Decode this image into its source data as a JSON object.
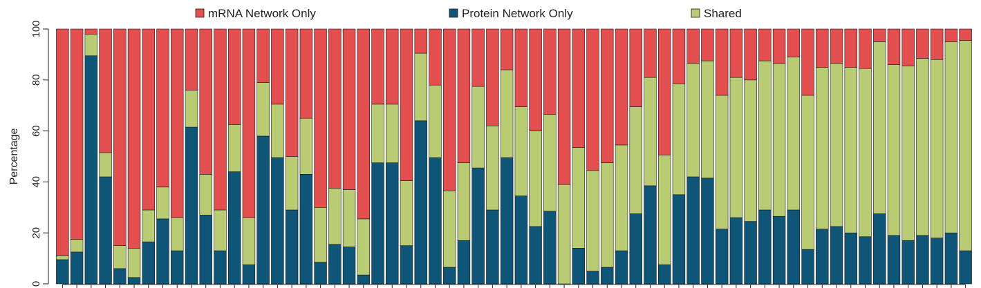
{
  "chart_data": {
    "type": "bar",
    "stacked": true,
    "title": "",
    "xlabel": "",
    "ylabel": "Percentage",
    "ylim": [
      0,
      100
    ],
    "yticks": [
      0,
      20,
      40,
      60,
      80,
      100
    ],
    "legend_position": "top",
    "grid": false,
    "colors": {
      "mRNA Network Only": "#e34f4f",
      "Protein Network Only": "#0f5577",
      "Shared": "#b9cc73"
    },
    "series": [
      {
        "name": "Protein Network Only",
        "values": [
          9.5,
          12.5,
          89.5,
          42,
          6,
          2.5,
          16.5,
          25.5,
          13,
          61.5,
          27,
          13,
          44,
          7.5,
          58,
          49.5,
          29,
          43,
          8.5,
          15.5,
          14.5,
          3.5,
          47.5,
          47.5,
          15,
          64,
          49.5,
          6.5,
          17,
          45.5,
          29,
          49.5,
          34.5,
          22.5,
          28.5,
          0,
          14,
          5,
          6.5,
          13,
          27.5,
          38.5,
          7.5,
          35,
          42,
          41.5,
          21.5,
          26,
          24.5,
          29,
          26.5,
          29,
          13.5,
          21.5,
          22.5,
          20,
          18.5,
          27.5,
          19,
          17,
          19,
          18,
          20,
          13
        ]
      },
      {
        "name": "Shared",
        "values": [
          1.5,
          5,
          8.5,
          9.5,
          9,
          11.5,
          12.5,
          12.5,
          13,
          14.5,
          16,
          16,
          18.5,
          18.5,
          21,
          21,
          21,
          22,
          21.5,
          22,
          22.5,
          22,
          23,
          23,
          25.5,
          26.5,
          28.5,
          30,
          30.5,
          32,
          33,
          34.5,
          35,
          37.5,
          38,
          39,
          39.5,
          39.5,
          41,
          41.5,
          42,
          42.5,
          43,
          43.5,
          44.5,
          46,
          52.5,
          55,
          55.5,
          58.5,
          60,
          60,
          60.5,
          63.5,
          64,
          65,
          66,
          67.5,
          67,
          68.5,
          69.5,
          70,
          75,
          82.5
        ]
      },
      {
        "name": "mRNA Network Only",
        "values": [
          89,
          82.5,
          2,
          48.5,
          85,
          86,
          71,
          62,
          74,
          24,
          57,
          71,
          37.5,
          74,
          21,
          29.5,
          50,
          35,
          70,
          62.5,
          63,
          74.5,
          29.5,
          29.5,
          59.5,
          9.5,
          22,
          63.5,
          52.5,
          22.5,
          38,
          16,
          30.5,
          40,
          33.5,
          61,
          46.5,
          55.5,
          52.5,
          45.5,
          30.5,
          19,
          49.5,
          21.5,
          13.5,
          12.5,
          26,
          19,
          20,
          12.5,
          13.5,
          11,
          26,
          15,
          13.5,
          15,
          15.5,
          5,
          14,
          14.5,
          11.5,
          12,
          5,
          4.5
        ]
      }
    ]
  }
}
